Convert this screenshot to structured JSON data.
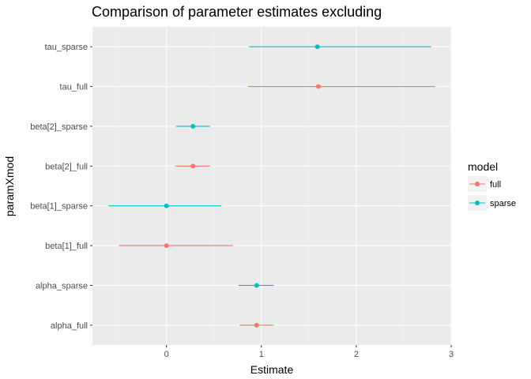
{
  "chart_data": {
    "type": "scatter",
    "title": "Comparison of parameter estimates excluding",
    "xlabel": "Estimate",
    "ylabel": "paramXmod",
    "xlim": [
      -0.78,
      3.0
    ],
    "x_ticks": [
      "0",
      "1",
      "2",
      "3"
    ],
    "x_tick_values": [
      0,
      1,
      2,
      3
    ],
    "categories": [
      "alpha_full",
      "alpha_sparse",
      "beta[1]_full",
      "beta[1]_sparse",
      "beta[2]_full",
      "beta[2]_sparse",
      "tau_full",
      "tau_sparse"
    ],
    "grid": true,
    "legend": {
      "title": "model",
      "position": "right"
    },
    "series": [
      {
        "name": "full",
        "color": "#F8766D",
        "points": [
          {
            "category": "alpha_full",
            "estimate": 0.95,
            "lower": 0.77,
            "upper": 1.13
          },
          {
            "category": "beta[1]_full",
            "estimate": 0.0,
            "lower": -0.5,
            "upper": 0.7
          },
          {
            "category": "beta[2]_full",
            "estimate": 0.28,
            "lower": 0.09,
            "upper": 0.46
          },
          {
            "category": "tau_full",
            "estimate": 1.6,
            "lower": 0.86,
            "upper": 2.83
          }
        ]
      },
      {
        "name": "sparse",
        "color": "#00BFC4",
        "points": [
          {
            "category": "alpha_sparse",
            "estimate": 0.95,
            "lower": 0.76,
            "upper": 1.13
          },
          {
            "category": "beta[1]_sparse",
            "estimate": 0.0,
            "lower": -0.61,
            "upper": 0.58
          },
          {
            "category": "beta[2]_sparse",
            "estimate": 0.28,
            "lower": 0.1,
            "upper": 0.46
          },
          {
            "category": "tau_sparse",
            "estimate": 1.59,
            "lower": 0.87,
            "upper": 2.79
          }
        ]
      }
    ]
  }
}
